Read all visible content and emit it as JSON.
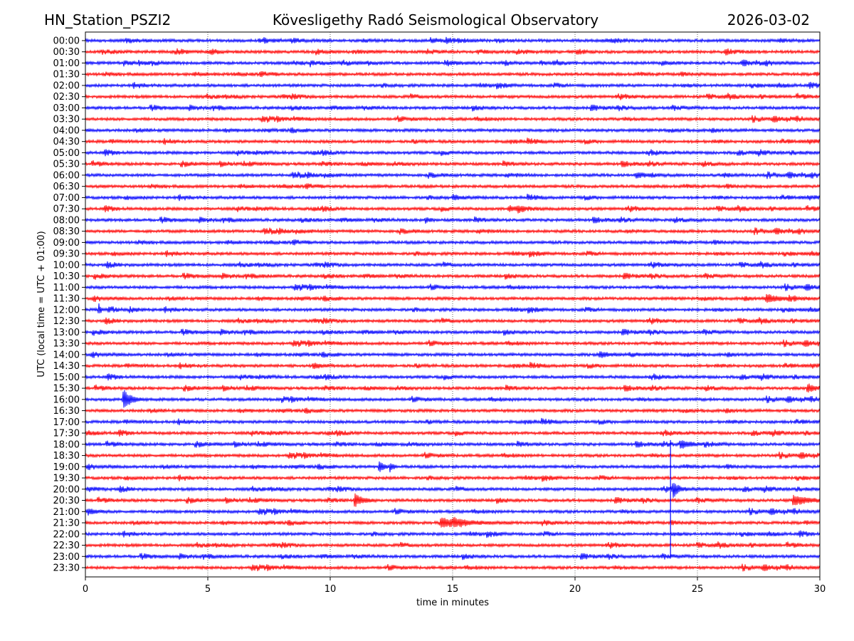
{
  "header": {
    "station": "HN_Station_PSZI2",
    "observatory": "Kövesligethy Radó Seismological Observatory",
    "date": "2026-03-02"
  },
  "chart_data": {
    "type": "line",
    "title": "Kövesligethy Radó Seismological Observatory",
    "xlabel": "time in minutes",
    "ylabel": "UTC (local time = UTC + 01:00)",
    "xlim": [
      0,
      30
    ],
    "xticks": [
      0,
      5,
      10,
      15,
      20,
      25,
      30
    ],
    "grid": "vertical dotted at x ticks",
    "row_labels": [
      "00:00",
      "00:30",
      "01:00",
      "01:30",
      "02:00",
      "02:30",
      "03:00",
      "03:30",
      "04:00",
      "04:30",
      "05:00",
      "05:30",
      "06:00",
      "06:30",
      "07:00",
      "07:30",
      "08:00",
      "08:30",
      "09:00",
      "09:30",
      "10:00",
      "10:30",
      "11:00",
      "11:30",
      "12:00",
      "12:30",
      "13:00",
      "13:30",
      "14:00",
      "14:30",
      "15:00",
      "15:30",
      "16:00",
      "16:30",
      "17:00",
      "17:30",
      "18:00",
      "18:30",
      "19:00",
      "19:30",
      "20:00",
      "20:30",
      "21:00",
      "21:30",
      "22:00",
      "22:30",
      "23:00",
      "23:30"
    ],
    "colors": [
      "#0000ff",
      "#ff0000"
    ],
    "noise_amplitude": 0.13,
    "events": [
      {
        "row": "06:00",
        "minute": 22.5,
        "amplitude": 0.25,
        "duration": 0.6
      },
      {
        "row": "07:00",
        "minute": 15.0,
        "amplitude": 0.2,
        "duration": 0.6
      },
      {
        "row": "07:30",
        "minute": 17.3,
        "amplitude": 0.25,
        "duration": 0.8
      },
      {
        "row": "08:00",
        "minute": 13.9,
        "amplitude": 0.25,
        "duration": 0.3
      },
      {
        "row": "11:30",
        "minute": 27.8,
        "amplitude": 0.35,
        "duration": 0.9
      },
      {
        "row": "12:00",
        "minute": 0.55,
        "amplitude": 0.45,
        "duration": 0.15
      },
      {
        "row": "12:00",
        "minute": 0.95,
        "amplitude": 0.35,
        "duration": 0.15
      },
      {
        "row": "14:00",
        "minute": 21.0,
        "amplitude": 0.3,
        "duration": 0.6
      },
      {
        "row": "14:30",
        "minute": 9.3,
        "amplitude": 0.25,
        "duration": 0.5
      },
      {
        "row": "15:30",
        "minute": 29.5,
        "amplitude": 0.4,
        "duration": 0.5
      },
      {
        "row": "16:00",
        "minute": 1.55,
        "amplitude": 0.95,
        "duration": 0.5
      },
      {
        "row": "18:00",
        "minute": 24.3,
        "amplitude": 0.35,
        "duration": 0.7
      },
      {
        "row": "19:00",
        "minute": 12.0,
        "amplitude": 0.6,
        "duration": 0.25
      },
      {
        "row": "19:00",
        "minute": 12.45,
        "amplitude": 0.45,
        "duration": 0.2
      },
      {
        "row": "20:00",
        "minute": 24.0,
        "amplitude": 0.75,
        "duration": 0.35
      },
      {
        "row": "20:30",
        "minute": 11.0,
        "amplitude": 0.6,
        "duration": 0.5
      },
      {
        "row": "20:30",
        "minute": 28.9,
        "amplitude": 0.45,
        "duration": 1.1
      },
      {
        "row": "21:00",
        "minute": 0.1,
        "amplitude": 0.3,
        "duration": 0.5
      },
      {
        "row": "21:30",
        "minute": 14.5,
        "amplitude": 0.45,
        "duration": 1.5
      }
    ],
    "spike": {
      "minute": 23.9,
      "from_row": "18:00",
      "to_row": "23:00"
    }
  }
}
